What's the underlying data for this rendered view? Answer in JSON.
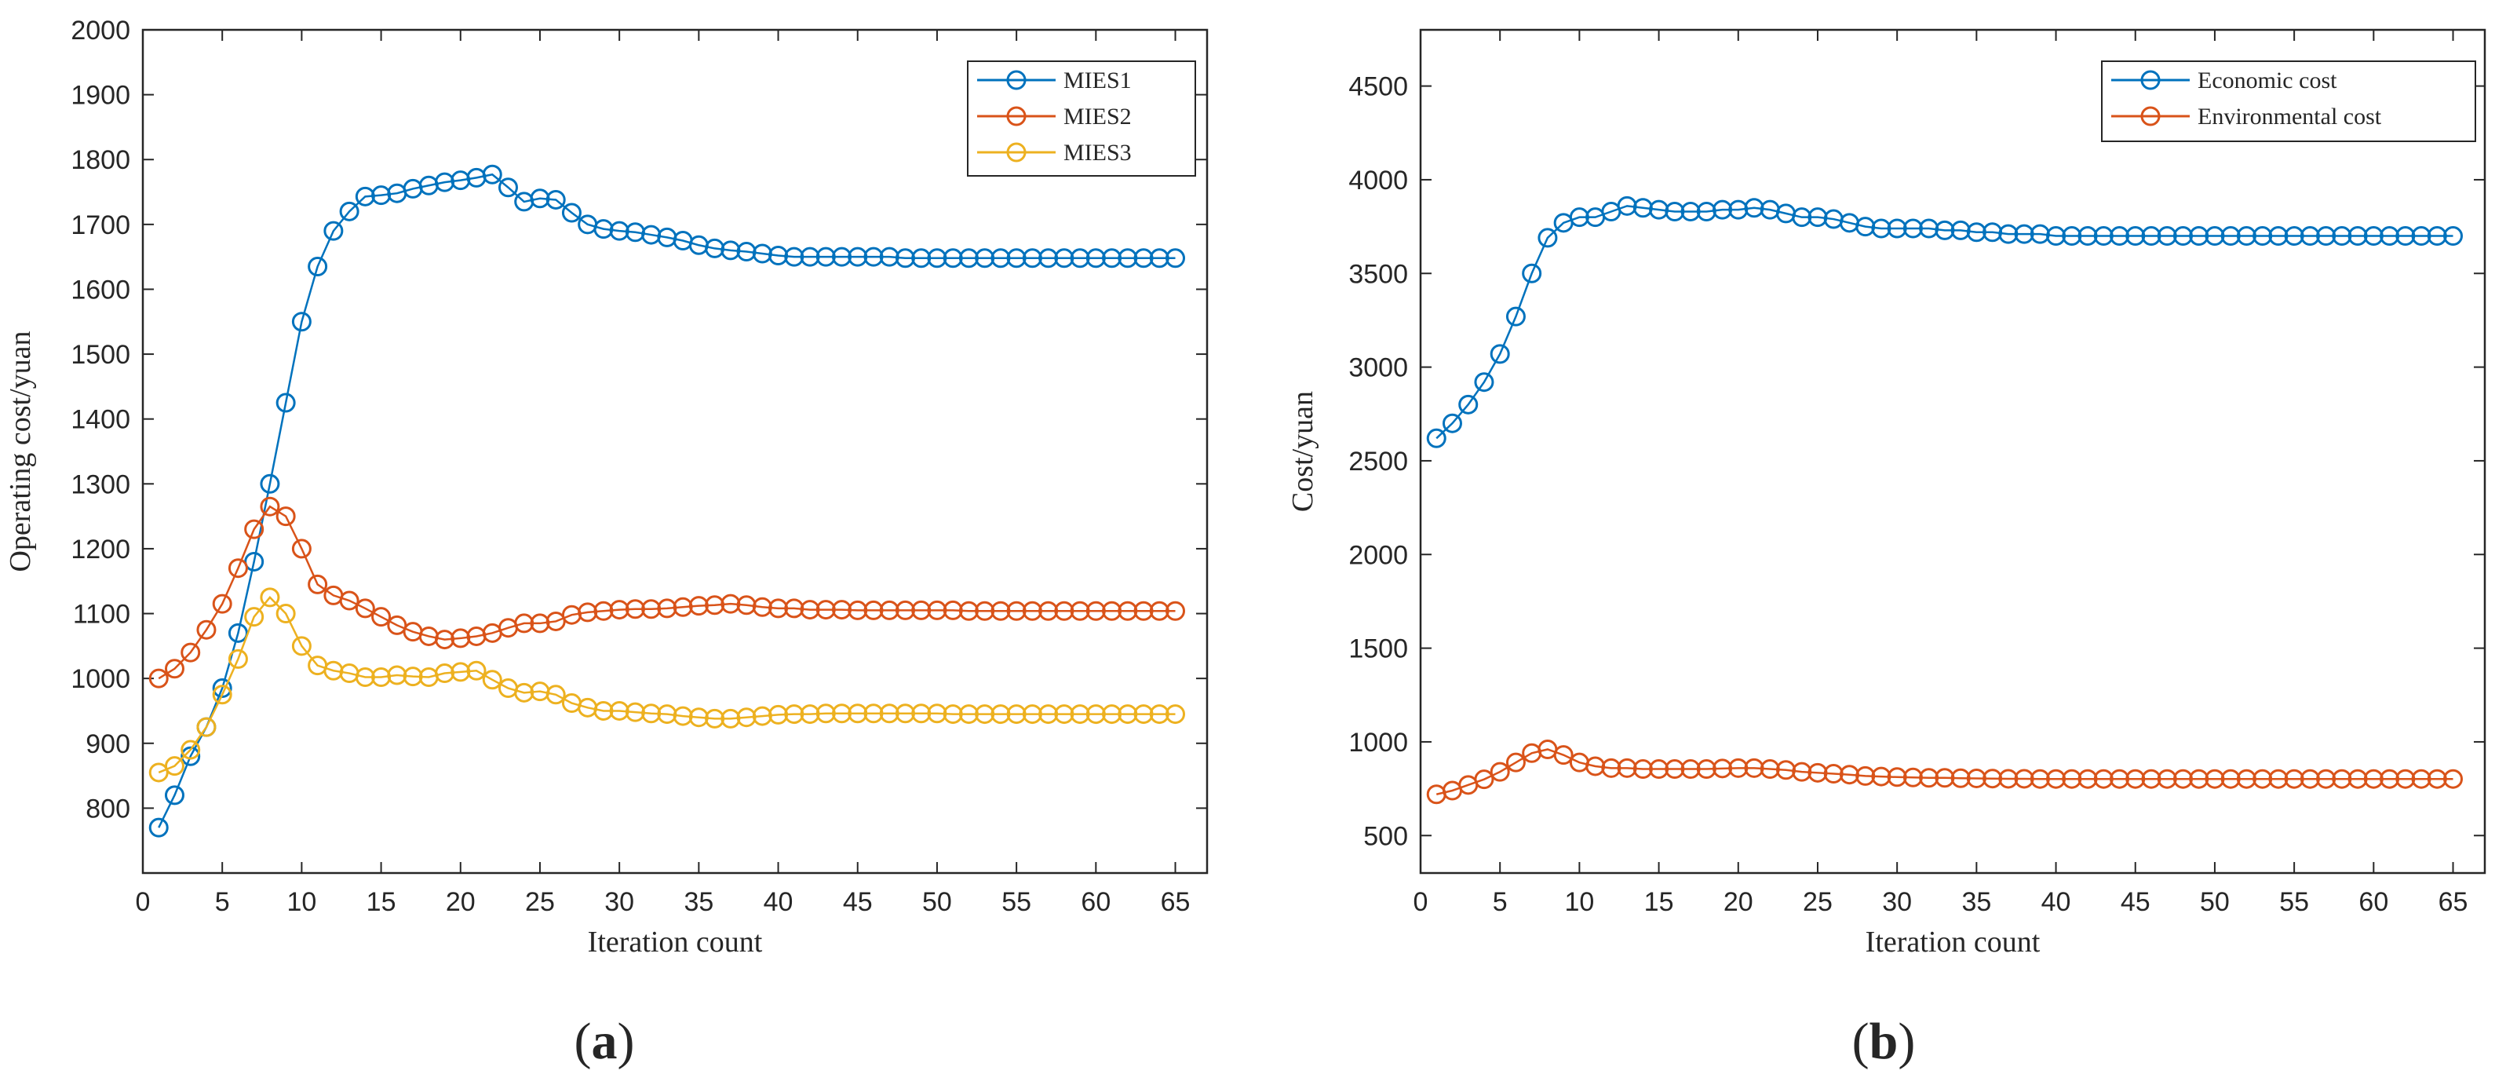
{
  "panels": [
    {
      "label": "a",
      "chart_data": {
        "type": "line",
        "xlabel": "Iteration count",
        "ylabel": "Operating cost/yuan",
        "xlim": [
          0,
          67
        ],
        "ylim": [
          700,
          2000
        ],
        "xticks": [
          0,
          5,
          10,
          15,
          20,
          25,
          30,
          35,
          40,
          45,
          50,
          55,
          60,
          65
        ],
        "yticks": [
          800,
          900,
          1000,
          1100,
          1200,
          1300,
          1400,
          1500,
          1600,
          1700,
          1800,
          1900,
          2000
        ],
        "legend_position": "top-right",
        "grid": false,
        "x": [
          1,
          2,
          3,
          4,
          5,
          6,
          7,
          8,
          9,
          10,
          11,
          12,
          13,
          14,
          15,
          16,
          17,
          18,
          19,
          20,
          21,
          22,
          23,
          24,
          25,
          26,
          27,
          28,
          29,
          30,
          31,
          32,
          33,
          34,
          35,
          36,
          37,
          38,
          39,
          40,
          41,
          42,
          43,
          44,
          45,
          46,
          47,
          48,
          49,
          50,
          51,
          52,
          53,
          54,
          55,
          56,
          57,
          58,
          59,
          60,
          61,
          62,
          63,
          64,
          65
        ],
        "series": [
          {
            "name": "MIES1",
            "color": "#0072BD",
            "values": [
              770,
              820,
              880,
              925,
              985,
              1070,
              1180,
              1300,
              1425,
              1550,
              1635,
              1690,
              1720,
              1743,
              1745,
              1748,
              1755,
              1760,
              1765,
              1768,
              1772,
              1777,
              1757,
              1735,
              1740,
              1738,
              1718,
              1700,
              1693,
              1690,
              1688,
              1684,
              1680,
              1675,
              1668,
              1663,
              1660,
              1658,
              1655,
              1652,
              1650,
              1650,
              1650,
              1650,
              1650,
              1650,
              1650,
              1648,
              1648,
              1648,
              1648,
              1648,
              1648,
              1648,
              1648,
              1648,
              1648,
              1648,
              1648,
              1648,
              1648,
              1648,
              1648,
              1648,
              1648
            ]
          },
          {
            "name": "MIES2",
            "color": "#D95319",
            "values": [
              1000,
              1015,
              1040,
              1075,
              1115,
              1170,
              1230,
              1265,
              1250,
              1200,
              1145,
              1128,
              1120,
              1108,
              1095,
              1082,
              1072,
              1065,
              1060,
              1062,
              1065,
              1070,
              1078,
              1085,
              1085,
              1088,
              1098,
              1102,
              1104,
              1106,
              1107,
              1107,
              1108,
              1110,
              1112,
              1113,
              1115,
              1113,
              1110,
              1108,
              1108,
              1106,
              1106,
              1106,
              1105,
              1105,
              1105,
              1105,
              1105,
              1105,
              1105,
              1104,
              1104,
              1104,
              1104,
              1104,
              1104,
              1104,
              1104,
              1104,
              1104,
              1104,
              1104,
              1104,
              1104
            ]
          },
          {
            "name": "MIES3",
            "color": "#EDB120",
            "values": [
              855,
              865,
              890,
              925,
              975,
              1030,
              1095,
              1125,
              1100,
              1050,
              1020,
              1012,
              1008,
              1002,
              1002,
              1005,
              1003,
              1002,
              1008,
              1010,
              1012,
              998,
              985,
              978,
              980,
              975,
              962,
              955,
              950,
              950,
              948,
              946,
              945,
              942,
              940,
              938,
              938,
              940,
              942,
              944,
              945,
              945,
              946,
              946,
              946,
              946,
              946,
              946,
              946,
              946,
              945,
              945,
              945,
              945,
              945,
              945,
              945,
              945,
              945,
              945,
              945,
              945,
              945,
              945,
              945
            ]
          }
        ]
      }
    },
    {
      "label": "b",
      "chart_data": {
        "type": "line",
        "xlabel": "Iteration count",
        "ylabel": "Cost/yuan",
        "xlim": [
          0,
          67
        ],
        "ylim": [
          300,
          4800
        ],
        "xticks": [
          0,
          5,
          10,
          15,
          20,
          25,
          30,
          35,
          40,
          45,
          50,
          55,
          60,
          65
        ],
        "yticks": [
          500,
          1000,
          1500,
          2000,
          2500,
          3000,
          3500,
          4000,
          4500
        ],
        "legend_position": "top-right",
        "grid": false,
        "x": [
          1,
          2,
          3,
          4,
          5,
          6,
          7,
          8,
          9,
          10,
          11,
          12,
          13,
          14,
          15,
          16,
          17,
          18,
          19,
          20,
          21,
          22,
          23,
          24,
          25,
          26,
          27,
          28,
          29,
          30,
          31,
          32,
          33,
          34,
          35,
          36,
          37,
          38,
          39,
          40,
          41,
          42,
          43,
          44,
          45,
          46,
          47,
          48,
          49,
          50,
          51,
          52,
          53,
          54,
          55,
          56,
          57,
          58,
          59,
          60,
          61,
          62,
          63,
          64,
          65
        ],
        "series": [
          {
            "name": "Economic cost",
            "color": "#0072BD",
            "values": [
              2620,
              2700,
              2800,
              2920,
              3070,
              3270,
              3500,
              3690,
              3770,
              3800,
              3800,
              3830,
              3860,
              3850,
              3840,
              3830,
              3830,
              3830,
              3840,
              3840,
              3850,
              3840,
              3820,
              3800,
              3800,
              3790,
              3770,
              3750,
              3740,
              3740,
              3740,
              3740,
              3730,
              3730,
              3720,
              3720,
              3710,
              3710,
              3710,
              3700,
              3700,
              3700,
              3700,
              3700,
              3700,
              3700,
              3700,
              3700,
              3700,
              3700,
              3700,
              3700,
              3700,
              3700,
              3700,
              3700,
              3700,
              3700,
              3700,
              3700,
              3700,
              3700,
              3700,
              3700,
              3700
            ]
          },
          {
            "name": "Environmental cost",
            "color": "#D95319",
            "values": [
              720,
              740,
              770,
              800,
              840,
              890,
              940,
              960,
              930,
              890,
              870,
              860,
              860,
              855,
              855,
              855,
              855,
              855,
              858,
              860,
              860,
              855,
              850,
              840,
              835,
              830,
              825,
              818,
              815,
              812,
              810,
              808,
              808,
              806,
              805,
              804,
              803,
              803,
              802,
              802,
              802,
              802,
              802,
              802,
              802,
              802,
              802,
              802,
              802,
              802,
              802,
              802,
              802,
              802,
              802,
              802,
              802,
              802,
              802,
              802,
              802,
              802,
              802,
              802,
              802
            ]
          }
        ]
      }
    }
  ]
}
